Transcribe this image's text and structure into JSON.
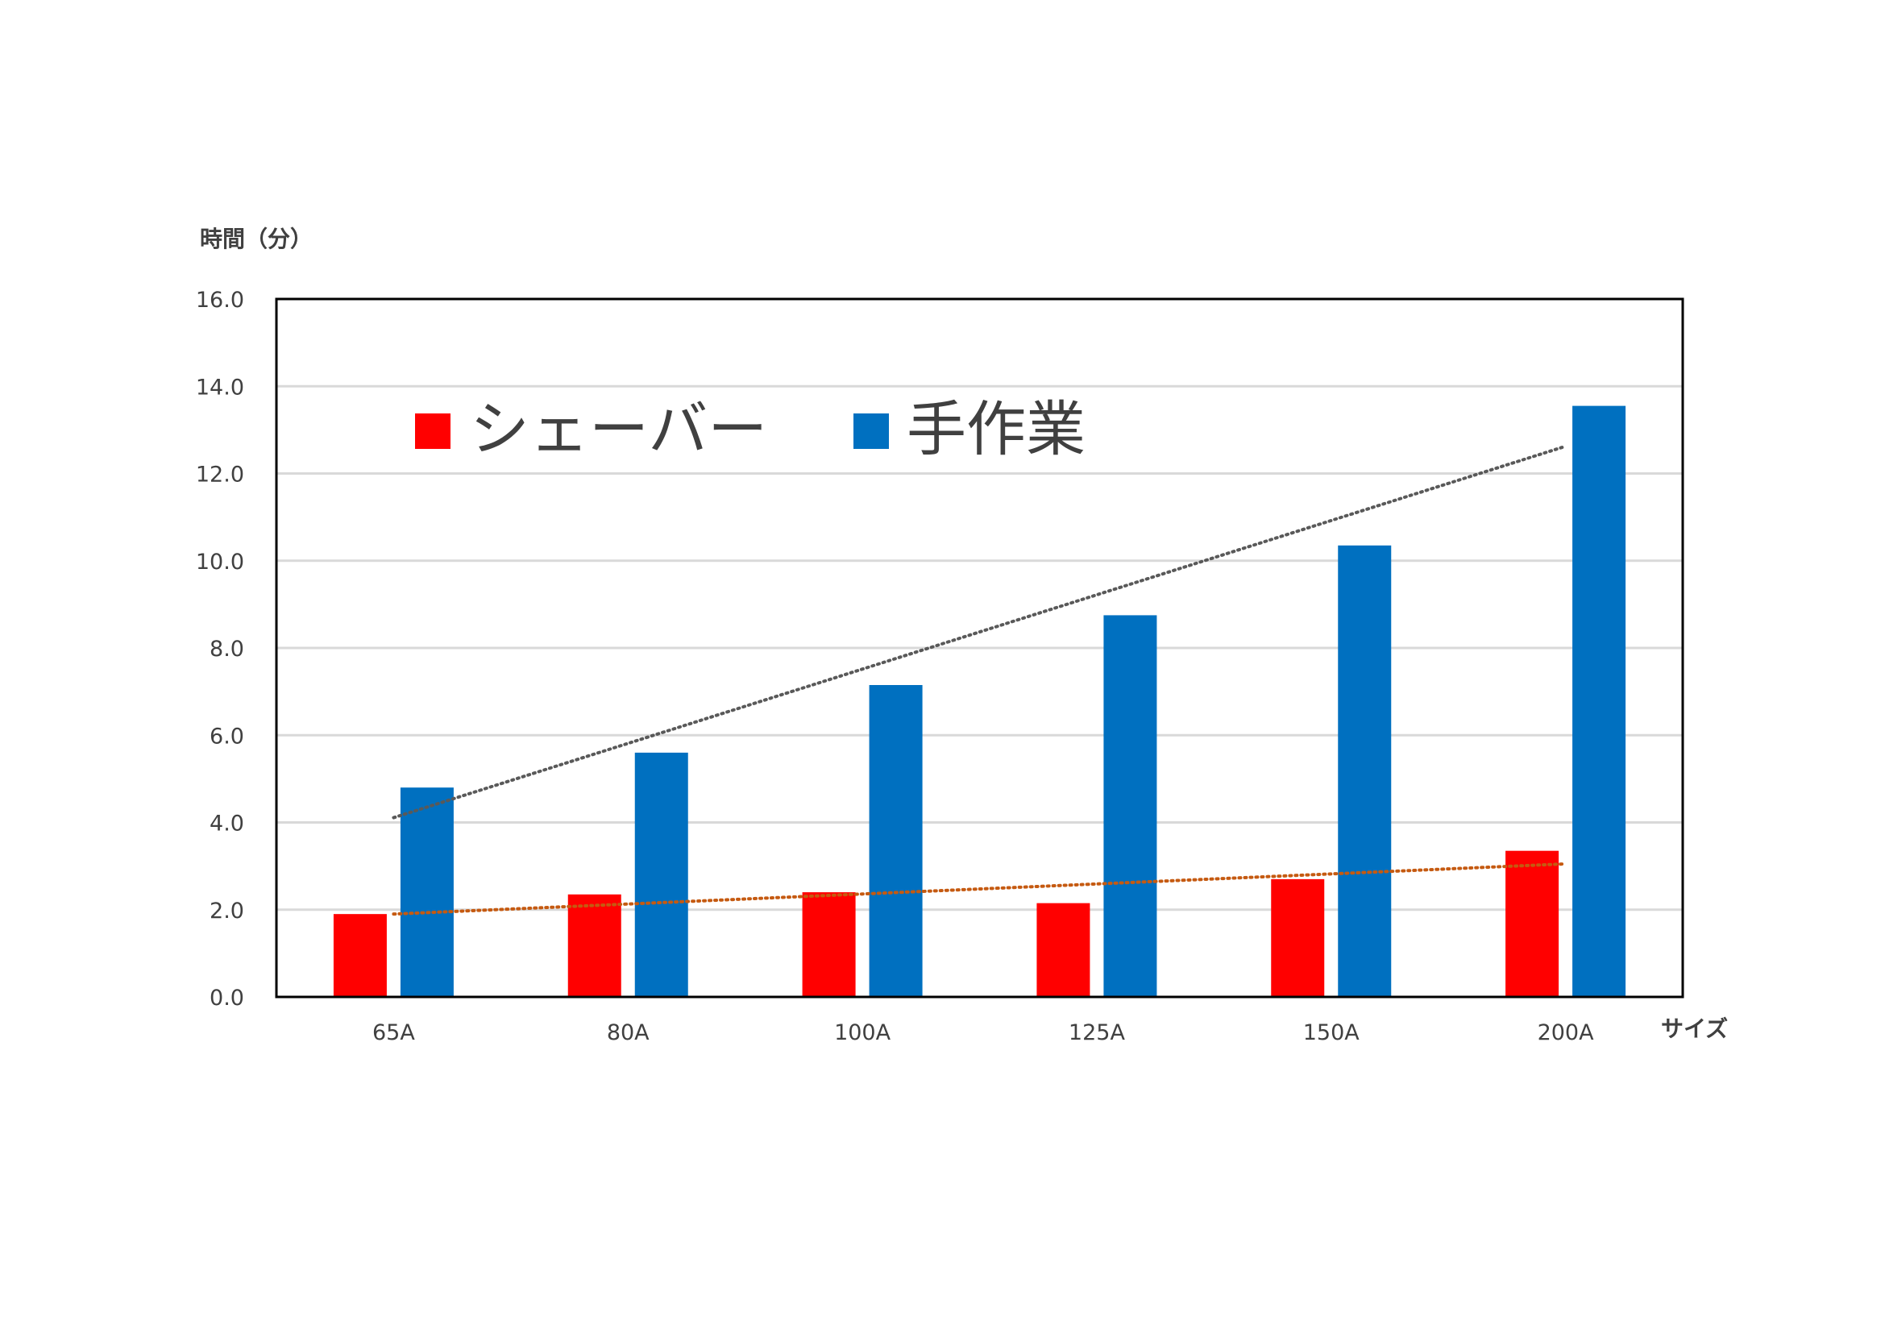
{
  "chart_data": {
    "type": "bar",
    "ylabel": "時間（分）",
    "xlabel": "サイズ",
    "categories": [
      "65A",
      "80A",
      "100A",
      "125A",
      "150A",
      "200A"
    ],
    "ylim": [
      0,
      16
    ],
    "yticks": [
      "0.0",
      "2.0",
      "4.0",
      "6.0",
      "8.0",
      "10.0",
      "12.0",
      "14.0",
      "16.0"
    ],
    "grid": true,
    "legend_position": "top-left-inside",
    "series": [
      {
        "name": "シェーバー",
        "color": "#FF0000",
        "values": [
          1.9,
          2.35,
          2.4,
          2.15,
          2.7,
          3.35
        ],
        "trendline": {
          "type": "linear",
          "color": "#C55A11",
          "style": "dotted"
        }
      },
      {
        "name": "手作業",
        "color": "#0070C0",
        "values": [
          4.8,
          5.6,
          7.15,
          8.75,
          10.35,
          13.55
        ],
        "trendline": {
          "type": "linear",
          "color": "#595959",
          "style": "dotted"
        }
      }
    ]
  }
}
